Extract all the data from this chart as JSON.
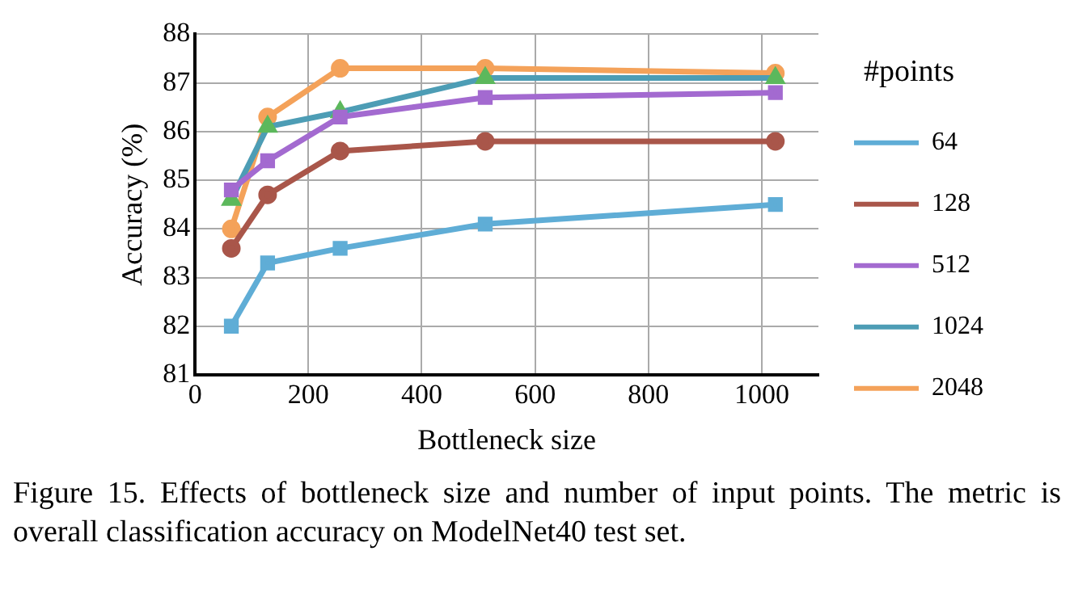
{
  "chart_data": {
    "type": "line",
    "xlabel": "Bottleneck size",
    "ylabel": "Accuracy (%)",
    "legend_title": "#points",
    "x": [
      64,
      128,
      256,
      512,
      1024
    ],
    "series": [
      {
        "name": "64",
        "color": "#5fadd6",
        "marker": "square",
        "values": [
          82.0,
          83.3,
          83.6,
          84.1,
          84.5
        ]
      },
      {
        "name": "128",
        "color": "#a9564a",
        "marker": "circle",
        "values": [
          83.6,
          84.7,
          85.6,
          85.8,
          85.8
        ]
      },
      {
        "name": "512",
        "color": "#a36ad0",
        "marker": "square",
        "values": [
          84.8,
          85.4,
          86.3,
          86.7,
          86.8
        ]
      },
      {
        "name": "1024",
        "color": "#4d9db5",
        "colors": [
          "#5cb85c",
          "#5cb85c",
          "#5cb85c",
          "#5cb85c",
          "#5cb85c"
        ],
        "marker": "triangle",
        "values": [
          84.6,
          86.1,
          86.4,
          87.1,
          87.1
        ]
      },
      {
        "name": "2048",
        "color": "#f4a25a",
        "marker": "circle",
        "values": [
          84.0,
          86.3,
          87.3,
          87.3,
          87.2
        ]
      }
    ],
    "xlim": [
      0,
      1100
    ],
    "xticks": [
      0,
      200,
      400,
      600,
      800,
      1000
    ],
    "ylim": [
      81,
      88
    ],
    "yticks": [
      81,
      82,
      83,
      84,
      85,
      86,
      87,
      88
    ],
    "grid": true,
    "legend": "right",
    "annotations": [
      "Figure 15. Effects of bottleneck size and number of input points. The metric is overall classification accuracy on ModelNet40 test set."
    ]
  }
}
